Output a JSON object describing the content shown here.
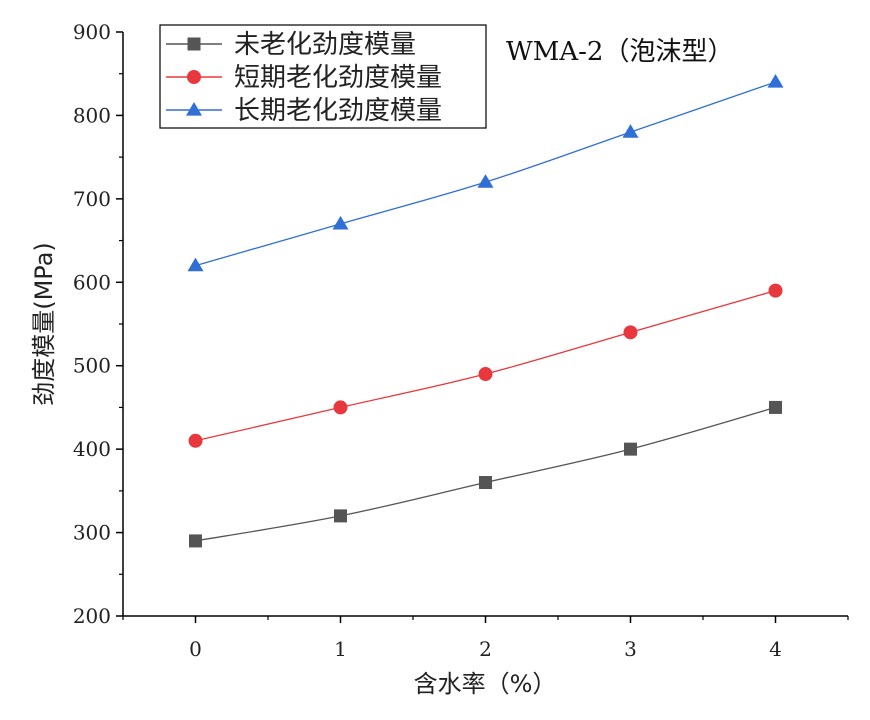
{
  "chart_data": {
    "type": "line",
    "title": "",
    "annotation": "WMA-2（泡沫型）",
    "xlabel": "含水率（%）",
    "ylabel": "劲度模量(MPa)",
    "x": [
      0,
      1,
      2,
      3,
      4
    ],
    "x_tick_labels": [
      "0",
      "1",
      "2",
      "3",
      "4"
    ],
    "xlim": [
      -0.5,
      4.5
    ],
    "ylim": [
      200,
      900
    ],
    "y_ticks": [
      200,
      300,
      400,
      500,
      600,
      700,
      800,
      900
    ],
    "y_tick_labels": [
      "200",
      "300",
      "400",
      "500",
      "600",
      "700",
      "800",
      "900"
    ],
    "legend_position": "top-left",
    "grid": false,
    "series": [
      {
        "name": "未老化劲度模量",
        "values": [
          290,
          320,
          360,
          400,
          450
        ],
        "color": "#555555",
        "marker": "square"
      },
      {
        "name": "短期老化劲度模量",
        "values": [
          410,
          450,
          490,
          540,
          590
        ],
        "color": "#e8383d",
        "marker": "circle"
      },
      {
        "name": "长期老化劲度模量",
        "values": [
          620,
          670,
          720,
          780,
          840
        ],
        "color": "#2f6fd6",
        "marker": "triangle"
      }
    ]
  }
}
